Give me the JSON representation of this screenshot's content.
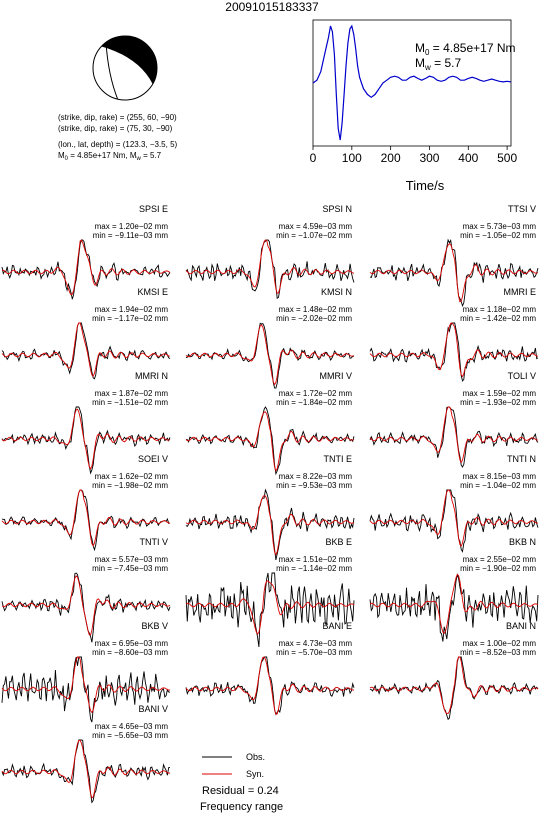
{
  "header": {
    "event_id": "20091015183337"
  },
  "mechanism": {
    "plane1": "(strike, dip, rake) = (255, 60, −90)",
    "plane2": "(strike, dip, rake) = (75, 30, −90)",
    "location": "(lon., lat, depth) = (123.3, −3.5, 5)",
    "moment_prefix": "M",
    "moment_sub": "0",
    "moment_value": " = 4.85e+17 Nm, M",
    "mw_sub": "w",
    "mw_value": " = 5.7"
  },
  "stf": {
    "m0_prefix": "M",
    "m0_sub": "0",
    "m0_value": " = 4.85e+17 Nm",
    "mw_prefix": "M",
    "mw_sub": "w",
    "mw_value": " = 5.7",
    "xlabel": "Time/s",
    "ticks": [
      "0",
      "100",
      "200",
      "300",
      "400",
      "500"
    ]
  },
  "legend": {
    "obs": "Obs.",
    "syn": "Syn.",
    "residual": "Residual = 0.24",
    "frequency": "Frequency range"
  },
  "chart_data": [
    {
      "type": "line",
      "title": "",
      "xlabel": "Time/s",
      "xlim": [
        0,
        510
      ],
      "x_ticks": [
        0,
        100,
        200,
        300,
        400,
        500
      ],
      "series": [
        {
          "color": "#0000cc",
          "x": [
            0,
            10,
            20,
            30,
            40,
            45,
            50,
            55,
            60,
            65,
            70,
            75,
            80,
            85,
            90,
            95,
            100,
            105,
            110,
            115,
            120,
            125,
            130,
            140,
            150,
            160,
            170,
            180,
            190,
            200,
            210,
            220,
            230,
            240,
            250,
            260,
            270,
            280,
            290,
            300,
            310,
            320,
            330,
            340,
            350,
            360,
            370,
            380,
            390,
            400,
            410,
            420,
            430,
            440,
            450,
            460,
            470,
            480,
            490,
            500,
            510
          ],
          "y": [
            0,
            0.05,
            0.2,
            0.5,
            0.8,
            1.0,
            0.9,
            0.5,
            -0.2,
            -0.8,
            -1.0,
            -0.7,
            -0.2,
            0.3,
            0.7,
            0.95,
            1.0,
            0.85,
            0.6,
            0.3,
            0.1,
            0.0,
            -0.1,
            -0.2,
            -0.25,
            -0.2,
            -0.1,
            0.0,
            0.05,
            0.1,
            0.12,
            0.1,
            0.05,
            0.05,
            0.1,
            0.12,
            0.08,
            0.05,
            0.08,
            0.12,
            0.1,
            0.05,
            0.03,
            0.05,
            0.1,
            0.12,
            0.1,
            0.05,
            0.05,
            0.08,
            0.1,
            0.08,
            0.05,
            0.03,
            0.05,
            0.07,
            0.05,
            0.03,
            0.02,
            0.03,
            0.02
          ]
        }
      ]
    },
    {
      "type": "line",
      "waveforms": [
        {
          "station": "SPSI E",
          "max": "max = 1.20e−02 mm",
          "min": "min = −9.11e−03 mm",
          "col": 0,
          "row": 0,
          "seed": 3,
          "peak": 20,
          "noise": 0.1
        },
        {
          "station": "SPSI N",
          "max": "max = 4.59e−03 mm",
          "min": "min = −1.07e−02 mm",
          "col": 1,
          "row": 0,
          "seed": 7,
          "peak": 22,
          "noise": 0.14
        },
        {
          "station": "TTSI V",
          "max": "max = 5.73e−03 mm",
          "min": "min = −1.05e−02 mm",
          "col": 2,
          "row": 0,
          "seed": 11,
          "peak": 24,
          "noise": 0.12
        },
        {
          "station": "KMSI E",
          "max": "max = 1.94e−02 mm",
          "min": "min = −1.17e−02 mm",
          "col": 0,
          "row": 1,
          "seed": 13,
          "peak": 21,
          "noise": 0.06
        },
        {
          "station": "KMSI N",
          "max": "max = 1.48e−02 mm",
          "min": "min = −2.02e−02 mm",
          "col": 1,
          "row": 1,
          "seed": 17,
          "peak": 22,
          "noise": 0.05
        },
        {
          "station": "MMRI E",
          "max": "max = 1.18e−02 mm",
          "min": "min = −1.42e−02 mm",
          "col": 2,
          "row": 1,
          "seed": 19,
          "peak": 23,
          "noise": 0.1
        },
        {
          "station": "MMRI N",
          "max": "max = 1.87e−02 mm",
          "min": "min = −1.51e−02 mm",
          "col": 0,
          "row": 2,
          "seed": 23,
          "peak": 22,
          "noise": 0.08
        },
        {
          "station": "MMRI V",
          "max": "max = 1.72e−02 mm",
          "min": "min = −1.84e−02 mm",
          "col": 1,
          "row": 2,
          "seed": 29,
          "peak": 24,
          "noise": 0.06
        },
        {
          "station": "TOLI V",
          "max": "max = 1.59e−02 mm",
          "min": "min = −1.93e−02 mm",
          "col": 2,
          "row": 2,
          "seed": 31,
          "peak": 22,
          "noise": 0.08
        },
        {
          "station": "SOEI V",
          "max": "max = 1.62e−02 mm",
          "min": "min = −1.98e−02 mm",
          "col": 0,
          "row": 3,
          "seed": 37,
          "peak": 22,
          "noise": 0.06
        },
        {
          "station": "TNTI E",
          "max": "max = 8.22e−03 mm",
          "min": "min = −9.53e−03 mm",
          "col": 1,
          "row": 3,
          "seed": 41,
          "peak": 24,
          "noise": 0.12
        },
        {
          "station": "TNTI N",
          "max": "max = 8.15e−03 mm",
          "min": "min = −1.04e−02 mm",
          "col": 2,
          "row": 3,
          "seed": 43,
          "peak": 22,
          "noise": 0.12
        },
        {
          "station": "TNTI V",
          "max": "max = 5.57e−03 mm",
          "min": "min = −7.45e−03 mm",
          "col": 0,
          "row": 4,
          "seed": 47,
          "peak": 22,
          "noise": 0.1
        },
        {
          "station": "BKB E",
          "max": "max = 1.51e−02 mm",
          "min": "min = −1.14e−02 mm",
          "col": 1,
          "row": 4,
          "seed": 53,
          "peak": 20,
          "noise": 0.35
        },
        {
          "station": "BKB N",
          "max": "max = 2.55e−02 mm",
          "min": "min = −1.90e−02 mm",
          "col": 2,
          "row": 4,
          "seed": 59,
          "peak": 22,
          "noise": 0.3
        },
        {
          "station": "BKB V",
          "max": "max = 6.95e−03 mm",
          "min": "min = −8.60e−03 mm",
          "col": 0,
          "row": 5,
          "seed": 61,
          "peak": 21,
          "noise": 0.25
        },
        {
          "station": "BANI E",
          "max": "max = 4.73e−03 mm",
          "min": "min = −5.70e−03 mm",
          "col": 1,
          "row": 5,
          "seed": 67,
          "peak": 22,
          "noise": 0.1
        },
        {
          "station": "BANI N",
          "max": "max = 1.00e−02 mm",
          "min": "min = −8.52e−03 mm",
          "col": 2,
          "row": 5,
          "seed": 71,
          "peak": 24,
          "noise": 0.06
        },
        {
          "station": "BANI V",
          "max": "max = 4.65e−03 mm",
          "min": "min = −5.65e−03 mm",
          "col": 0,
          "row": 6,
          "seed": 73,
          "peak": 22,
          "noise": 0.1
        }
      ]
    }
  ]
}
